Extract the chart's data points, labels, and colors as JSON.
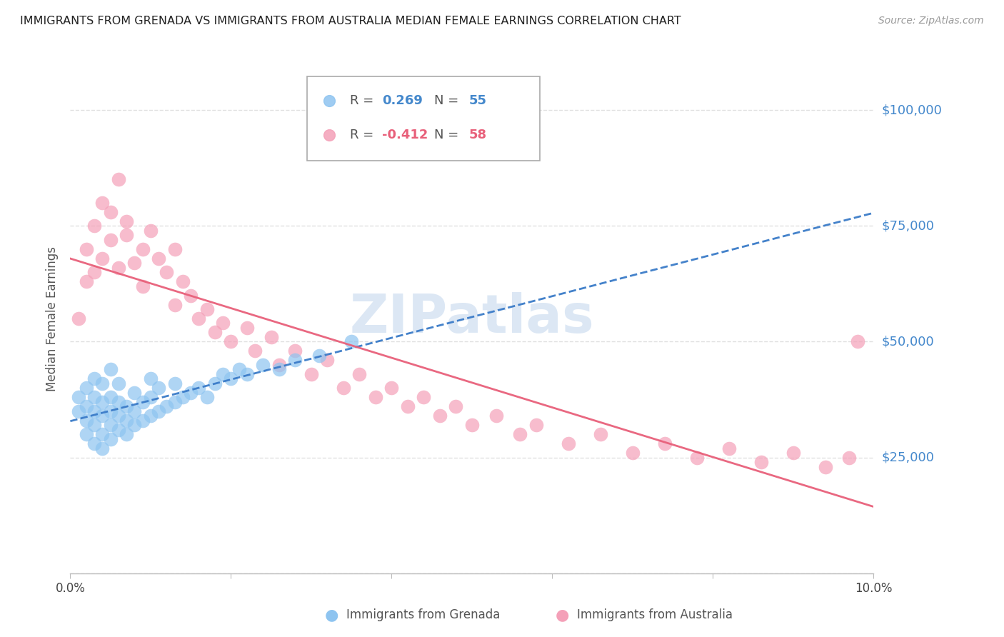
{
  "title": "IMMIGRANTS FROM GRENADA VS IMMIGRANTS FROM AUSTRALIA MEDIAN FEMALE EARNINGS CORRELATION CHART",
  "source": "Source: ZipAtlas.com",
  "ylabel": "Median Female Earnings",
  "xlim": [
    0.0,
    0.1
  ],
  "ylim": [
    0,
    110000
  ],
  "yticks": [
    0,
    25000,
    50000,
    75000,
    100000
  ],
  "ytick_labels": [
    "",
    "$25,000",
    "$50,000",
    "$75,000",
    "$100,000"
  ],
  "xticks": [
    0.0,
    0.02,
    0.04,
    0.06,
    0.08,
    0.1
  ],
  "xtick_labels": [
    "0.0%",
    "",
    "",
    "",
    "",
    "10.0%"
  ],
  "grenada_R": 0.269,
  "grenada_N": 55,
  "australia_R": -0.412,
  "australia_N": 58,
  "grenada_color": "#8EC4F0",
  "australia_color": "#F4A0B8",
  "trend_grenada_color": "#3A7BC8",
  "trend_australia_color": "#E8607A",
  "background_color": "#FFFFFF",
  "grid_color": "#DDDDDD",
  "watermark_color": "#C5D8EE",
  "axis_label_color": "#4488CC",
  "title_color": "#222222",
  "grenada_x": [
    0.001,
    0.001,
    0.002,
    0.002,
    0.002,
    0.002,
    0.003,
    0.003,
    0.003,
    0.003,
    0.003,
    0.004,
    0.004,
    0.004,
    0.004,
    0.004,
    0.005,
    0.005,
    0.005,
    0.005,
    0.005,
    0.006,
    0.006,
    0.006,
    0.006,
    0.007,
    0.007,
    0.007,
    0.008,
    0.008,
    0.008,
    0.009,
    0.009,
    0.01,
    0.01,
    0.01,
    0.011,
    0.011,
    0.012,
    0.013,
    0.013,
    0.014,
    0.015,
    0.016,
    0.017,
    0.018,
    0.019,
    0.02,
    0.021,
    0.022,
    0.024,
    0.026,
    0.028,
    0.031,
    0.035
  ],
  "grenada_y": [
    35000,
    38000,
    30000,
    33000,
    36000,
    40000,
    28000,
    32000,
    35000,
    38000,
    42000,
    27000,
    30000,
    34000,
    37000,
    41000,
    29000,
    32000,
    35000,
    38000,
    44000,
    31000,
    34000,
    37000,
    41000,
    30000,
    33000,
    36000,
    32000,
    35000,
    39000,
    33000,
    37000,
    34000,
    38000,
    42000,
    35000,
    40000,
    36000,
    37000,
    41000,
    38000,
    39000,
    40000,
    38000,
    41000,
    43000,
    42000,
    44000,
    43000,
    45000,
    44000,
    46000,
    47000,
    50000
  ],
  "australia_x": [
    0.001,
    0.002,
    0.002,
    0.003,
    0.003,
    0.004,
    0.004,
    0.005,
    0.005,
    0.006,
    0.006,
    0.007,
    0.007,
    0.008,
    0.009,
    0.009,
    0.01,
    0.011,
    0.012,
    0.013,
    0.013,
    0.014,
    0.015,
    0.016,
    0.017,
    0.018,
    0.019,
    0.02,
    0.022,
    0.023,
    0.025,
    0.026,
    0.028,
    0.03,
    0.032,
    0.034,
    0.036,
    0.038,
    0.04,
    0.042,
    0.044,
    0.046,
    0.048,
    0.05,
    0.053,
    0.056,
    0.058,
    0.062,
    0.066,
    0.07,
    0.074,
    0.078,
    0.082,
    0.086,
    0.09,
    0.094,
    0.097,
    0.098
  ],
  "australia_y": [
    55000,
    63000,
    70000,
    65000,
    75000,
    68000,
    80000,
    72000,
    78000,
    66000,
    85000,
    73000,
    76000,
    67000,
    70000,
    62000,
    74000,
    68000,
    65000,
    70000,
    58000,
    63000,
    60000,
    55000,
    57000,
    52000,
    54000,
    50000,
    53000,
    48000,
    51000,
    45000,
    48000,
    43000,
    46000,
    40000,
    43000,
    38000,
    40000,
    36000,
    38000,
    34000,
    36000,
    32000,
    34000,
    30000,
    32000,
    28000,
    30000,
    26000,
    28000,
    25000,
    27000,
    24000,
    26000,
    23000,
    25000,
    50000
  ]
}
